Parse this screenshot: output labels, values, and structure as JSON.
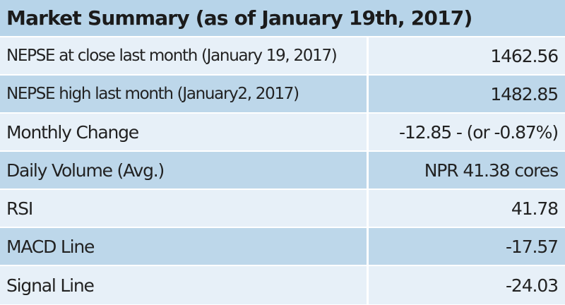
{
  "title": "Market Summary (as of January 19th, 2017)",
  "rows": [
    {
      "label": "NEPSE at close last month (January 19, 2017)",
      "value": "1462.56"
    },
    {
      "label": "NEPSE high last month (January2, 2017)",
      "value": "1482.85"
    },
    {
      "label": "Monthly Change",
      "value": "-12.85 - (or -0.87%)"
    },
    {
      "label": "Daily Volume (Avg.)",
      "value": "NPR 41.38 cores"
    },
    {
      "label": "RSI",
      "value": "41.78"
    },
    {
      "label": "MACD Line",
      "value": "-17.57"
    },
    {
      "label": "Signal Line",
      "value": "-24.03"
    }
  ],
  "colors": {
    "header_bg": "#b7d4e9",
    "row_light": "#e7f0f8",
    "row_dark": "#bdd7ea",
    "text": "#222222"
  }
}
